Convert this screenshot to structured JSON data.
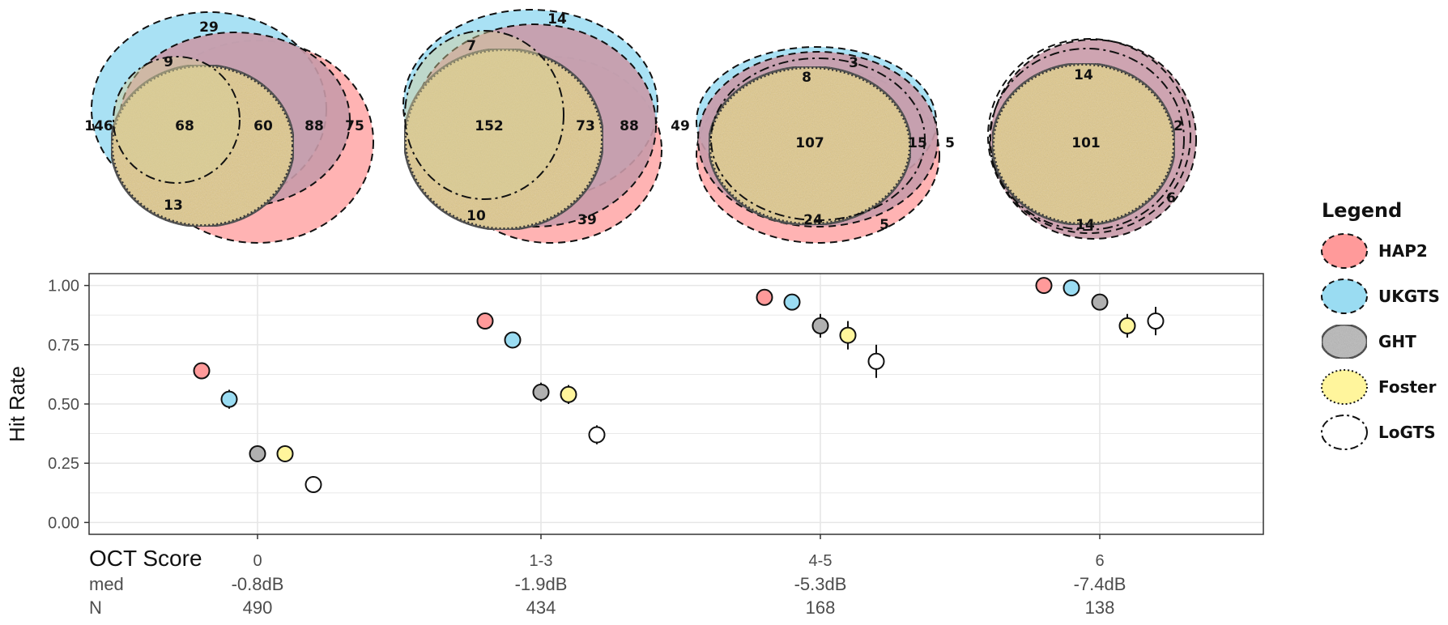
{
  "colors": {
    "HAP2": "#ff9a9a",
    "UKGTS": "#9adcf2",
    "GHT": "#b0b0b0",
    "Foster": "#fff59c",
    "LoGTS": "#ffffff",
    "venn_fill": "#e0c98a",
    "grid": "#e6e6e6",
    "panel_border": "#333333"
  },
  "legend": {
    "title": "Legend",
    "items": [
      {
        "name": "HAP2",
        "line": "dashed"
      },
      {
        "name": "UKGTS",
        "line": "dashed"
      },
      {
        "name": "GHT",
        "line": "solid"
      },
      {
        "name": "Foster",
        "line": "dotted"
      },
      {
        "name": "LoGTS",
        "line": "dashdot"
      }
    ]
  },
  "venn": [
    {
      "oct": "0",
      "counts": [
        "29",
        "9",
        "146",
        "68",
        "60",
        "88",
        "75",
        "13"
      ]
    },
    {
      "oct": "1-3",
      "counts": [
        "14",
        "7",
        "152",
        "73",
        "88",
        "49",
        "10",
        "39"
      ]
    },
    {
      "oct": "4-5",
      "counts": [
        "3",
        "8",
        "107",
        "15",
        "5",
        "24",
        "5"
      ]
    },
    {
      "oct": "6",
      "counts": [
        "14",
        "2",
        "101",
        "6",
        "14"
      ]
    }
  ],
  "chart_data": {
    "type": "scatter",
    "title": "",
    "xlabel": "",
    "ylabel": "Hit Rate",
    "ylim": [
      0,
      1.05
    ],
    "yticks": [
      "0.00",
      "0.25",
      "0.50",
      "0.75",
      "1.00"
    ],
    "grid": true,
    "legend_position": "right",
    "categories": [
      "0",
      "1-3",
      "4-5",
      "6"
    ],
    "series": [
      {
        "name": "HAP2",
        "values": [
          0.64,
          0.85,
          0.95,
          1.0
        ],
        "err": [
          0.03,
          0.02,
          0.02,
          0.01
        ]
      },
      {
        "name": "UKGTS",
        "values": [
          0.52,
          0.77,
          0.93,
          0.99
        ],
        "err": [
          0.04,
          0.03,
          0.03,
          0.01
        ]
      },
      {
        "name": "GHT",
        "values": [
          0.29,
          0.55,
          0.83,
          0.93
        ],
        "err": [
          0.03,
          0.04,
          0.05,
          0.03
        ]
      },
      {
        "name": "Foster",
        "values": [
          0.29,
          0.54,
          0.79,
          0.83
        ],
        "err": [
          0.03,
          0.04,
          0.06,
          0.05
        ]
      },
      {
        "name": "LoGTS",
        "values": [
          0.16,
          0.37,
          0.68,
          0.85
        ],
        "err": [
          0.02,
          0.04,
          0.07,
          0.06
        ]
      }
    ]
  },
  "footer": {
    "oct_label": "OCT Score",
    "med_label": "med",
    "n_label": "N",
    "med": [
      "-0.8dB",
      "-1.9dB",
      "-5.3dB",
      "-7.4dB"
    ],
    "n": [
      "490",
      "434",
      "168",
      "138"
    ]
  }
}
